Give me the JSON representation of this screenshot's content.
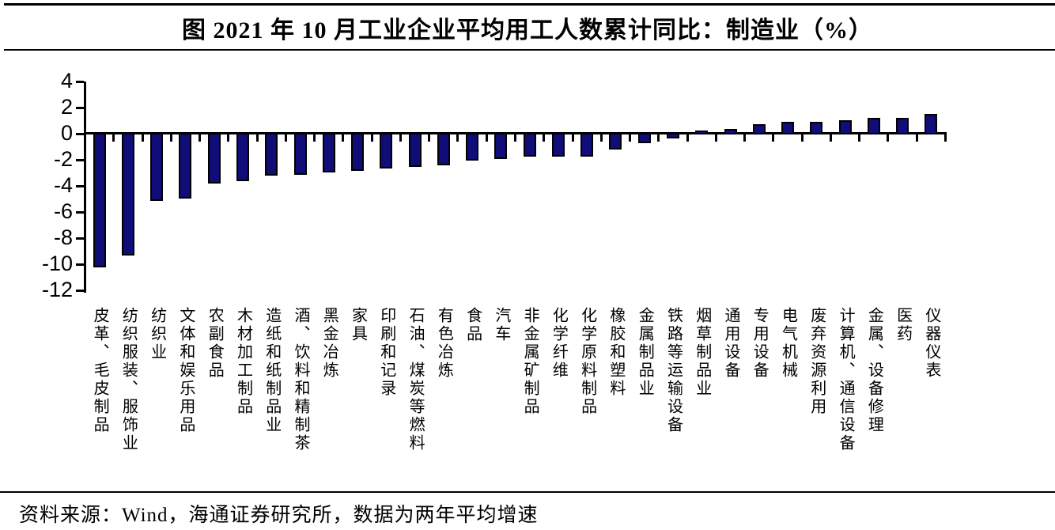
{
  "title": "图 2021 年 10 月工业企业平均用工人数累计同比：制造业（%）",
  "source_note": "资料来源：Wind，海通证券研究所，数据为两年平均增速",
  "colors": {
    "bar_fill": "#100C78",
    "bar_border": "#000000",
    "axis": "#000000",
    "text": "#000000",
    "background": "#FFFFFF"
  },
  "chart_data": {
    "type": "bar",
    "title": "2021年10月工业企业平均用工人数累计同比：制造业",
    "unit": "%",
    "xlabel": "",
    "ylabel": "",
    "ylim": [
      -12,
      4
    ],
    "yticks": [
      4,
      2,
      0,
      -2,
      -4,
      -6,
      -8,
      -10,
      -12
    ],
    "grid": false,
    "legend_position": "none",
    "categories": [
      "皮革、毛皮制品",
      "纺织服装、服饰业",
      "纺织业",
      "文体和娱乐用品",
      "农副食品",
      "木材加工制品",
      "造纸和纸制品业",
      "酒、饮料和精制茶",
      "黑金冶炼",
      "家具",
      "印刷和记录",
      "石油、煤炭等燃料",
      "有色冶炼",
      "食品",
      "汽车",
      "非金属矿制品",
      "化学纤维",
      "化学原料制品",
      "橡胶和塑料",
      "金属制品业",
      "铁路等运输设备",
      "烟草制品业",
      "通用设备",
      "专用设备",
      "电气机械",
      "废弃资源利用",
      "计算机、通信设备",
      "金属、设备修理",
      "医药",
      "仪器仪表"
    ],
    "values": [
      -10.3,
      -9.4,
      -5.2,
      -5.0,
      -3.9,
      -3.7,
      -3.3,
      -3.2,
      -3.0,
      -2.9,
      -2.7,
      -2.6,
      -2.5,
      -2.1,
      -2.0,
      -1.8,
      -1.8,
      -1.8,
      -1.3,
      -0.8,
      -0.4,
      0.3,
      0.4,
      0.8,
      1.0,
      1.0,
      1.1,
      1.3,
      1.3,
      1.6
    ]
  }
}
